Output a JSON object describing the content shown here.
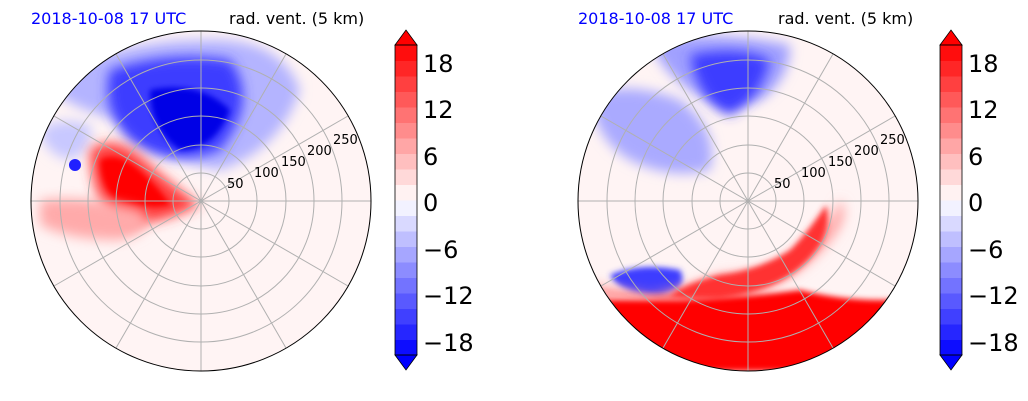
{
  "chart_data": [
    {
      "type": "heatmap",
      "title_left": "2018-10-08 17 UTC",
      "title_right": "rad. vent. (5 km)",
      "ring_labels": [
        "50",
        "100",
        "150",
        "200",
        "250"
      ],
      "colorbar": {
        "ticks": [
          "18",
          "12",
          "6",
          "0",
          "−6",
          "−12",
          "−18"
        ],
        "range": [
          -20,
          20
        ],
        "colors": {
          "positive": "#ff0000",
          "negative": "#0000ff",
          "zero": "#ffffff"
        }
      }
    },
    {
      "type": "heatmap",
      "title_left": "2018-10-08 17 UTC",
      "title_right": "rad. vent. (5 km)",
      "ring_labels": [
        "50",
        "100",
        "150",
        "200",
        "250"
      ],
      "colorbar": {
        "ticks": [
          "18",
          "12",
          "6",
          "0",
          "−6",
          "−12",
          "−18"
        ],
        "range": [
          -20,
          20
        ],
        "colors": {
          "positive": "#ff0000",
          "negative": "#0000ff",
          "zero": "#ffffff"
        }
      }
    }
  ]
}
